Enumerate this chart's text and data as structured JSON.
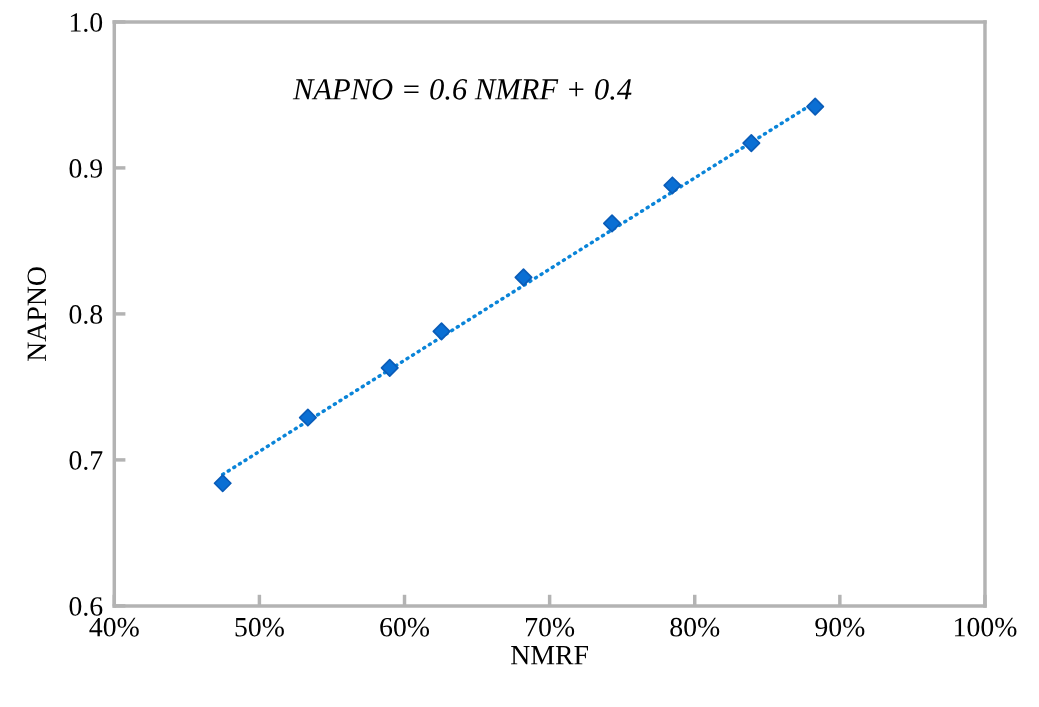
{
  "chart_data": {
    "type": "scatter",
    "xlabel": "NMRF",
    "ylabel": "NAPNO",
    "grid": false,
    "annotations": [
      "NAPNO = 0.6 NMRF + 0.4"
    ],
    "x": [
      47.47,
      53.34,
      58.98,
      62.55,
      68.2,
      74.3,
      78.46,
      83.9,
      88.3
    ],
    "series": [
      {
        "marker": "diamond",
        "color": "#0a6fd4",
        "values": [
          0.684,
          0.729,
          0.763,
          0.788,
          0.825,
          0.862,
          0.888,
          0.917,
          0.942
        ]
      },
      {
        "type": "line",
        "marker": "none",
        "line_style": "dotted",
        "color": "#0a84d8",
        "x": [
          47.47,
          88.3
        ],
        "values": [
          0.69,
          0.945
        ]
      }
    ],
    "xlim": [
      40,
      100
    ],
    "ylim": [
      0.6,
      1.0
    ],
    "xticks": [
      {
        "value": 40,
        "label": "40%"
      },
      {
        "value": 50,
        "label": "50%"
      },
      {
        "value": 60,
        "label": "60%"
      },
      {
        "value": 70,
        "label": "70%"
      },
      {
        "value": 80,
        "label": "80%"
      },
      {
        "value": 90,
        "label": "90%"
      },
      {
        "value": 100,
        "label": "100%"
      }
    ],
    "yticks": [
      {
        "value": 0.6,
        "label": "0.6"
      },
      {
        "value": 0.7,
        "label": "0.7"
      },
      {
        "value": 0.8,
        "label": "0.8"
      },
      {
        "value": 0.9,
        "label": "0.9"
      },
      {
        "value": 1.0,
        "label": "1.0"
      }
    ]
  }
}
